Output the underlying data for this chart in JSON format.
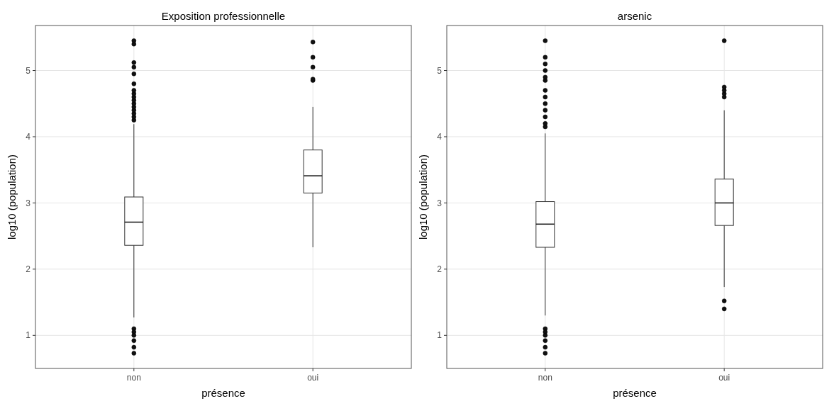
{
  "chart_data": [
    {
      "type": "box",
      "title": "Exposition professionnelle",
      "xlabel": "présence",
      "ylabel": "log10 (population)",
      "categories": [
        "non",
        "oui"
      ],
      "color": "#ffffff",
      "ylim": [
        0.5,
        5.68
      ],
      "yticks": [
        1,
        2,
        3,
        4,
        5
      ],
      "grid": true,
      "boxes": [
        {
          "low": 1.27,
          "q1": 2.36,
          "median": 2.71,
          "q3": 3.09,
          "high": 4.19,
          "outliers": [
            1.1,
            1.05,
            1.0,
            0.92,
            0.82,
            0.73,
            4.25,
            4.3,
            4.35,
            4.4,
            4.45,
            4.5,
            4.55,
            4.6,
            4.65,
            4.7,
            4.8,
            4.95,
            5.05,
            5.12,
            5.4,
            5.45
          ]
        },
        {
          "low": 2.33,
          "q1": 3.15,
          "median": 3.41,
          "q3": 3.8,
          "high": 4.45,
          "outliers": [
            4.85,
            4.87,
            5.05,
            5.2,
            5.43
          ]
        }
      ]
    },
    {
      "type": "box",
      "title": "arsenic",
      "xlabel": "présence",
      "ylabel": "log10 (population)",
      "categories": [
        "non",
        "oui"
      ],
      "color": "#ffffff",
      "ylim": [
        0.5,
        5.68
      ],
      "yticks": [
        1,
        2,
        3,
        4,
        5
      ],
      "grid": true,
      "boxes": [
        {
          "low": 1.3,
          "q1": 2.33,
          "median": 2.68,
          "q3": 3.02,
          "high": 4.05,
          "outliers": [
            1.1,
            1.05,
            1.0,
            0.92,
            0.82,
            0.73,
            4.15,
            4.2,
            4.3,
            4.4,
            4.5,
            4.6,
            4.7,
            4.85,
            4.9,
            5.0,
            5.1,
            5.2,
            5.45
          ]
        },
        {
          "low": 1.73,
          "q1": 2.66,
          "median": 3.0,
          "q3": 3.36,
          "high": 4.4,
          "outliers": [
            1.52,
            1.4,
            4.6,
            4.65,
            4.7,
            4.75,
            5.45
          ]
        }
      ]
    }
  ]
}
